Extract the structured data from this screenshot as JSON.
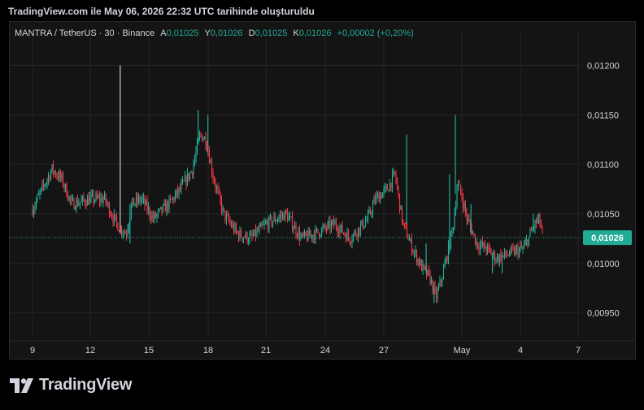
{
  "caption": "TradingView.com ile May 06, 2026 22:32 UTC tarihinde oluşturuldu",
  "legend": {
    "symbol": "MANTRA / TetherUS · 30 · Binance",
    "o_label": "A",
    "o_value": "0,01025",
    "h_label": "Y",
    "h_value": "0,01026",
    "l_label": "D",
    "l_value": "0,01025",
    "c_label": "K",
    "c_value": "0,01026",
    "change": "+0,00002 (+0,20%)"
  },
  "brand": {
    "name": "TradingView"
  },
  "colors": {
    "up": "#22ab94",
    "down": "#f23645",
    "grid": "#242424",
    "text": "#d1d4dc",
    "price_tag": "#22ab94"
  },
  "chart_data": {
    "type": "candlestick",
    "x_ticks": [
      "9",
      "12",
      "15",
      "18",
      "21",
      "24",
      "27",
      "May",
      "4",
      "7"
    ],
    "y_ticks": [
      "0,01200",
      "0,01150",
      "0,01100",
      "0,01050",
      "0,01000",
      "0,00950"
    ],
    "ylim": [
      0.00925,
      0.01225
    ],
    "last_price": 0.01026,
    "last_price_label": "0,01026",
    "anchors": [
      [
        0,
        0.01055
      ],
      [
        1,
        0.01095
      ],
      [
        1.5,
        0.01085
      ],
      [
        2,
        0.0106
      ],
      [
        3,
        0.01065
      ],
      [
        3.7,
        0.01065
      ],
      [
        4.3,
        0.0104
      ],
      [
        4.8,
        0.0103
      ],
      [
        5.1,
        0.0106
      ],
      [
        5.6,
        0.01065
      ],
      [
        6.2,
        0.01045
      ],
      [
        7,
        0.0106
      ],
      [
        7.6,
        0.01075
      ],
      [
        8.2,
        0.01095
      ],
      [
        8.6,
        0.0113
      ],
      [
        8.9,
        0.01125
      ],
      [
        9.3,
        0.01085
      ],
      [
        9.8,
        0.0105
      ],
      [
        10.5,
        0.0103
      ],
      [
        11.2,
        0.01025
      ],
      [
        12,
        0.0104
      ],
      [
        13,
        0.0105
      ],
      [
        13.8,
        0.01025
      ],
      [
        14.5,
        0.0103
      ],
      [
        15.5,
        0.0104
      ],
      [
        16.3,
        0.01025
      ],
      [
        17.2,
        0.01045
      ],
      [
        17.6,
        0.01065
      ],
      [
        18.2,
        0.01075
      ],
      [
        18.6,
        0.0109
      ],
      [
        19,
        0.0104
      ],
      [
        19.5,
        0.01015
      ],
      [
        20,
        0.00995
      ],
      [
        20.4,
        0.00985
      ],
      [
        20.7,
        0.00965
      ],
      [
        21,
        0.00985
      ],
      [
        21.3,
        0.0101
      ],
      [
        21.6,
        0.0104
      ],
      [
        21.8,
        0.0108
      ],
      [
        22,
        0.0107
      ],
      [
        22.3,
        0.01045
      ],
      [
        22.8,
        0.0102
      ],
      [
        23.3,
        0.01015
      ],
      [
        23.8,
        0.01005
      ],
      [
        24.5,
        0.0101
      ],
      [
        25.2,
        0.01015
      ],
      [
        25.8,
        0.0104
      ],
      [
        26,
        0.01045
      ],
      [
        26.2,
        0.01026
      ]
    ],
    "spikes": [
      [
        4.5,
        0.012,
        0.0103
      ],
      [
        5.0,
        0.0106,
        0.0102
      ],
      [
        8.5,
        0.01155,
        0.0112
      ],
      [
        9.0,
        0.0115,
        0.0111
      ],
      [
        19.2,
        0.0113,
        0.0104
      ],
      [
        20.2,
        0.0102,
        0.0099
      ],
      [
        20.6,
        0.00975,
        0.0096
      ],
      [
        21.4,
        0.0109,
        0.0101
      ],
      [
        21.7,
        0.0115,
        0.0107
      ],
      [
        22.5,
        0.0106,
        0.0103
      ],
      [
        23.6,
        0.0101,
        0.0099
      ],
      [
        24.1,
        0.01,
        0.0099
      ],
      [
        25.7,
        0.0105,
        0.01035
      ]
    ]
  }
}
